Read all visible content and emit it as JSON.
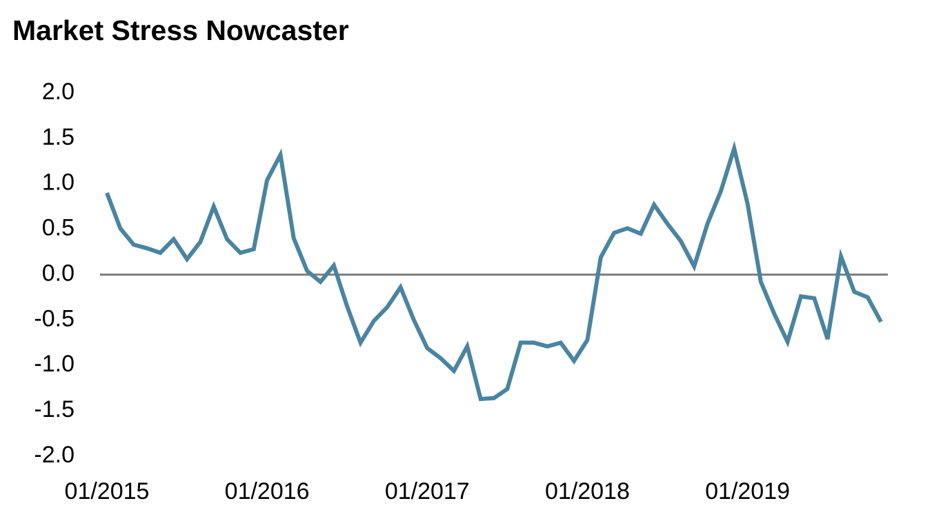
{
  "chart_data": {
    "type": "line",
    "title": "Market Stress Nowcaster",
    "categories": [
      "01/2015",
      null,
      null,
      null,
      null,
      null,
      null,
      null,
      null,
      null,
      null,
      null,
      "01/2016",
      null,
      null,
      null,
      null,
      null,
      null,
      null,
      null,
      null,
      null,
      null,
      "01/2017",
      null,
      null,
      null,
      null,
      null,
      null,
      null,
      null,
      null,
      null,
      null,
      "01/2018",
      null,
      null,
      null,
      null,
      null,
      null,
      null,
      null,
      null,
      null,
      null,
      "01/2019",
      null,
      null,
      null,
      null,
      null,
      null,
      null,
      null,
      null,
      null
    ],
    "series": [
      {
        "name": "Market Stress Nowcaster",
        "color": "#4a84a0",
        "values": [
          0.9,
          0.51,
          0.33,
          0.29,
          0.24,
          0.39,
          0.17,
          0.36,
          0.75,
          0.39,
          0.24,
          0.28,
          1.04,
          1.32,
          0.4,
          0.04,
          -0.08,
          0.1,
          -0.35,
          -0.75,
          -0.51,
          -0.36,
          -0.14,
          -0.5,
          -0.81,
          -0.92,
          -1.06,
          -0.79,
          -1.37,
          -1.36,
          -1.26,
          -0.75,
          -0.75,
          -0.79,
          -0.75,
          -0.95,
          -0.72,
          0.19,
          0.46,
          0.51,
          0.45,
          0.77,
          0.56,
          0.37,
          0.09,
          0.56,
          0.92,
          1.39,
          0.78,
          -0.08,
          -0.43,
          -0.74,
          -0.24,
          -0.26,
          -0.71,
          0.2,
          -0.19,
          -0.25,
          -0.52
        ]
      }
    ],
    "ylim": [
      -2,
      2
    ],
    "yticks": [
      {
        "value": 2,
        "label": "2.0"
      },
      1.5,
      {
        "value": 1,
        "label": "1.0"
      },
      0.5,
      {
        "value": 0,
        "label": "0.0"
      },
      -0.5,
      {
        "value": -1,
        "label": "-1.0"
      },
      -1.5,
      {
        "value": -2,
        "label": "-2.0"
      }
    ],
    "grid": false
  }
}
